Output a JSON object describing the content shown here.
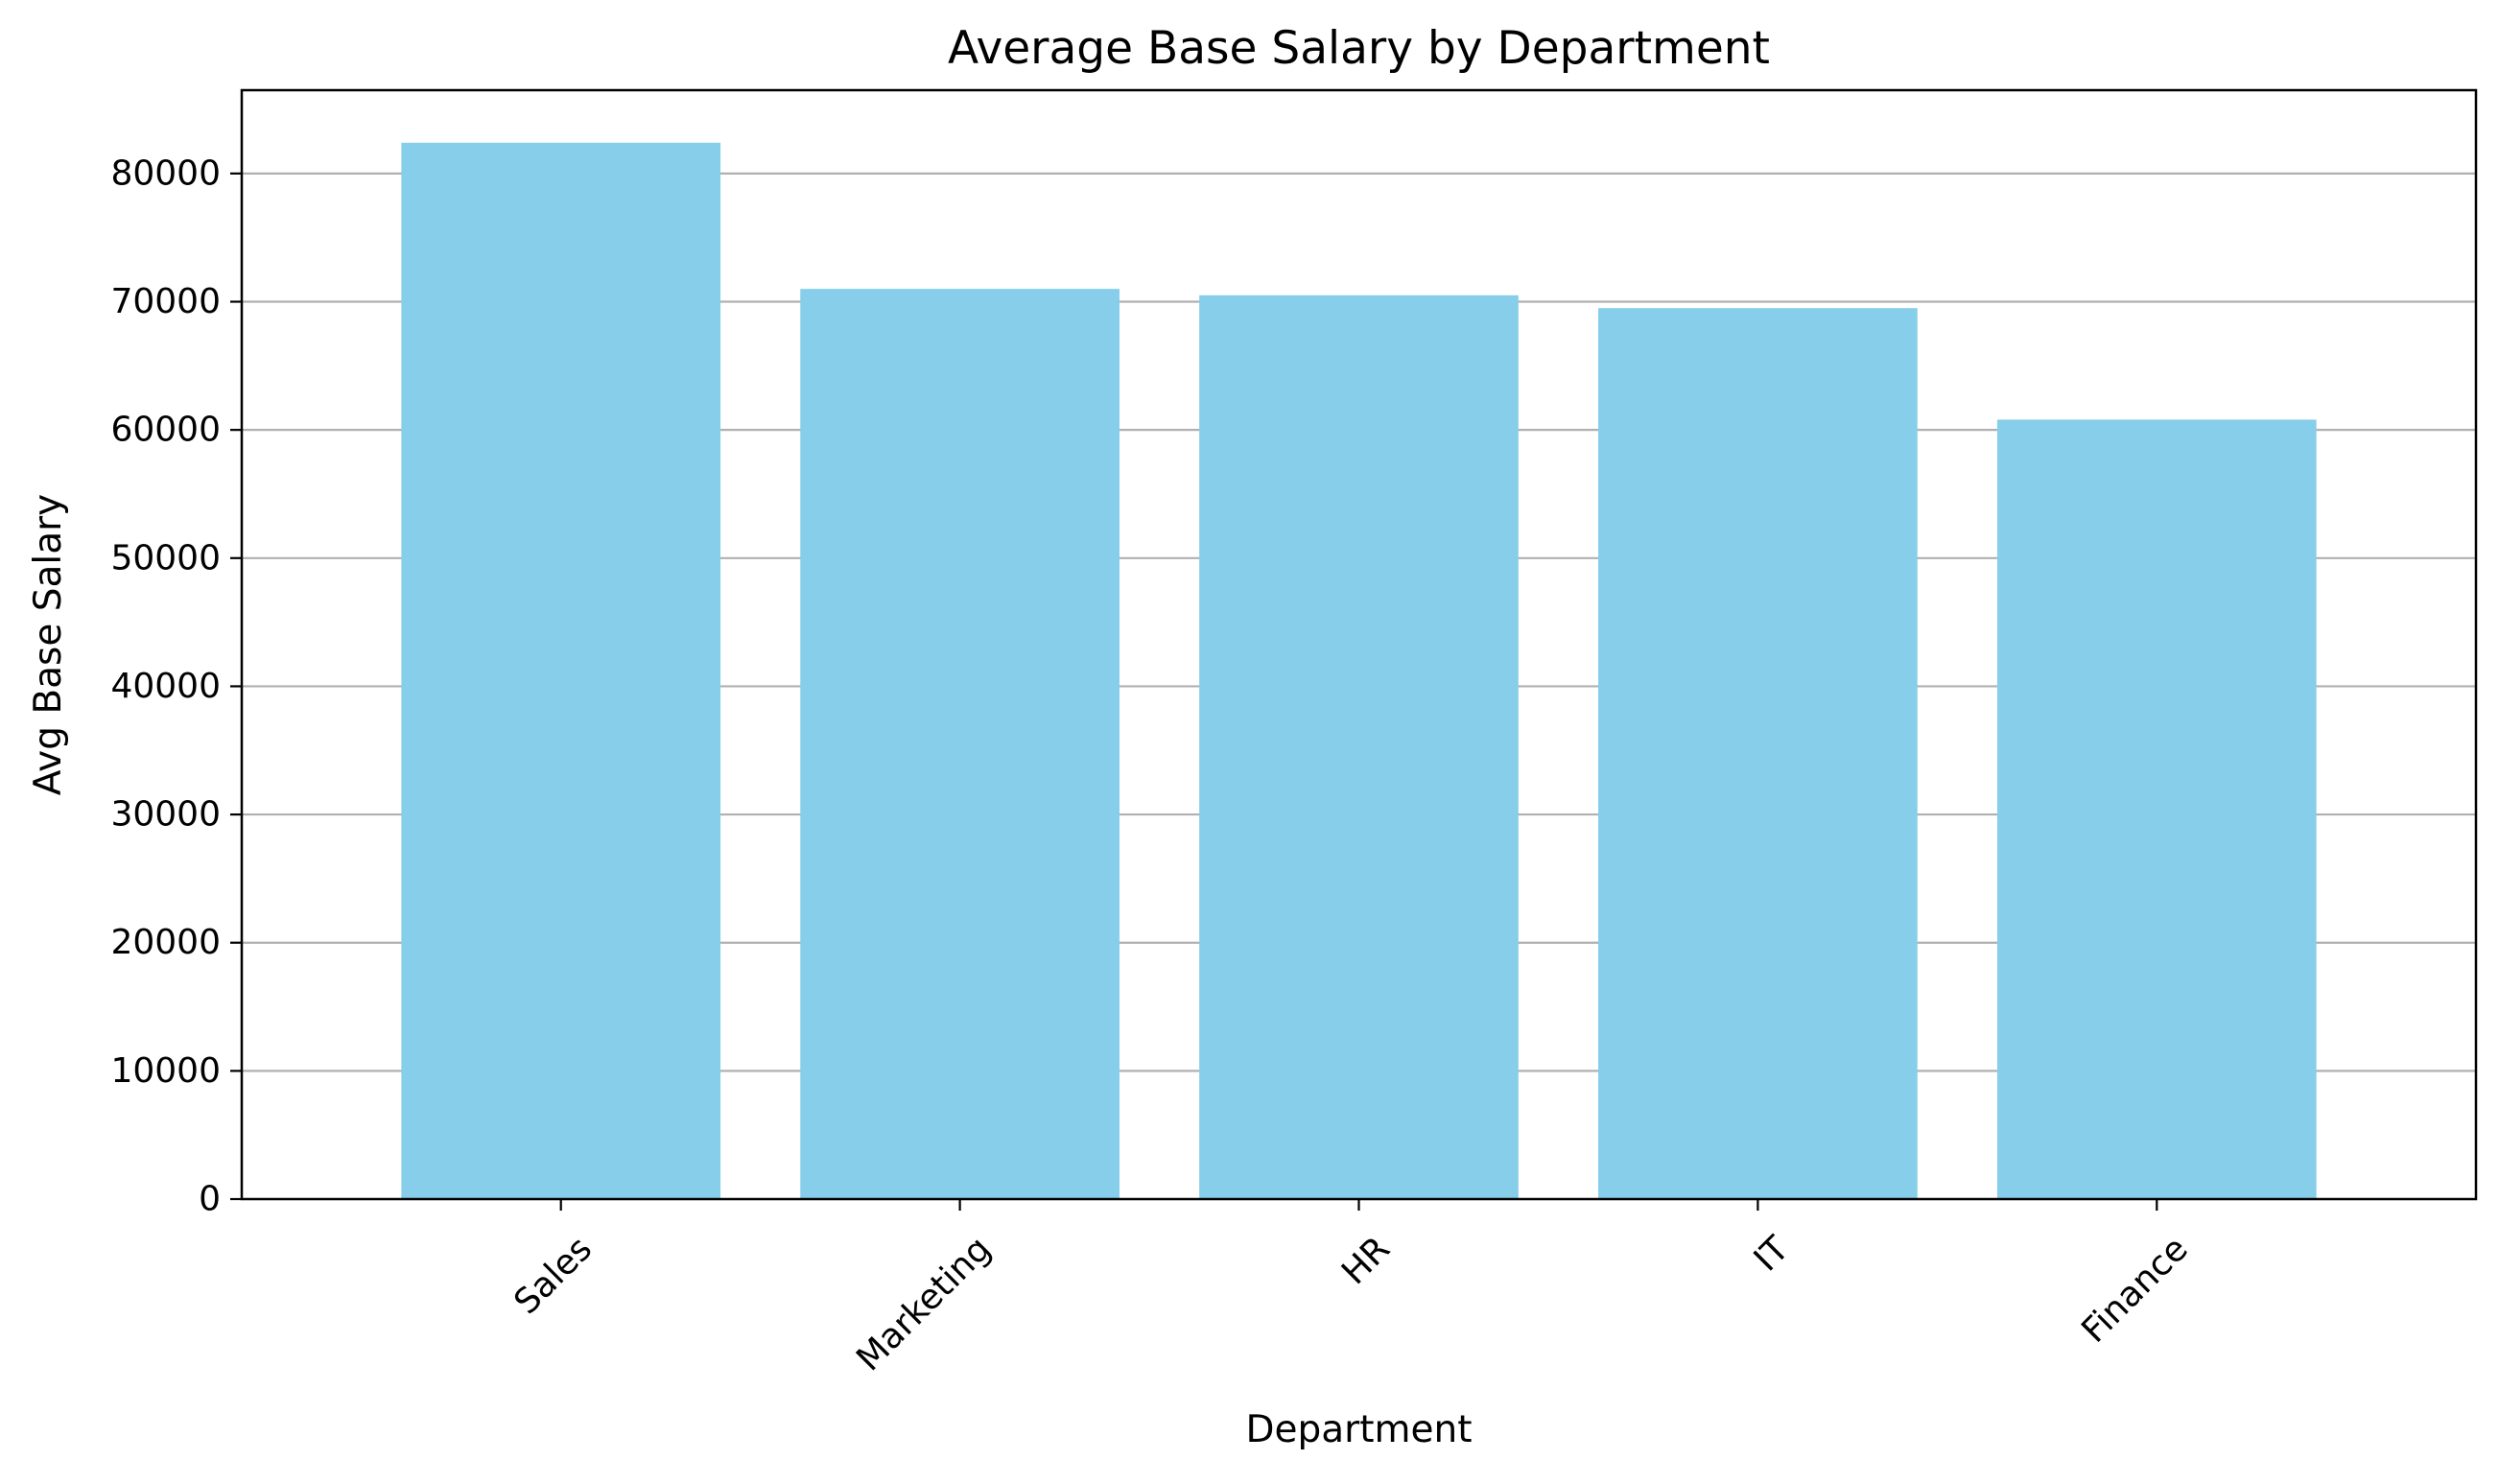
{
  "chart_data": {
    "type": "bar",
    "title": "Average Base Salary by Department",
    "xlabel": "Department",
    "ylabel": "Avg Base Salary",
    "categories": [
      "Sales",
      "Marketing",
      "HR",
      "IT",
      "Finance"
    ],
    "values": [
      82400,
      71000,
      70500,
      69500,
      60800
    ],
    "ylim": [
      0,
      86500
    ],
    "yticks": [
      0,
      10000,
      20000,
      30000,
      40000,
      50000,
      60000,
      70000,
      80000
    ],
    "ytick_labels": [
      "0",
      "10000",
      "20000",
      "30000",
      "40000",
      "50000",
      "60000",
      "70000",
      "80000"
    ],
    "bar_color": "#87CEEB",
    "grid_color": "#b0b0b0",
    "grid": "y-axis",
    "xtick_rotation": 45
  }
}
